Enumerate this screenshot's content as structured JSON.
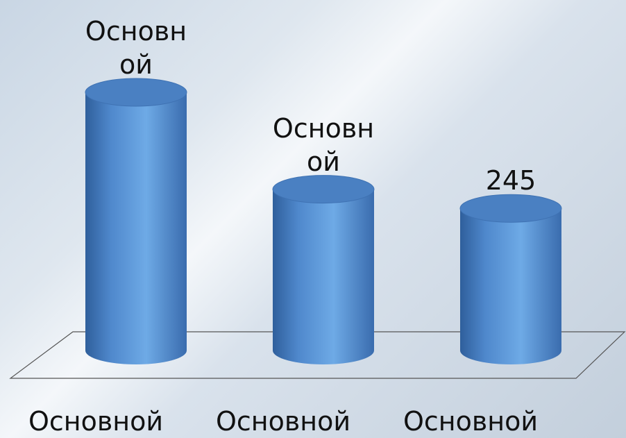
{
  "chart_data": {
    "type": "bar",
    "categories": [
      "Основной",
      "Основной",
      "Основной"
    ],
    "values": [
      445,
      278,
      245
    ],
    "value_labels": [
      "Основной",
      "Основной",
      "245"
    ],
    "color": "#5b9bd5"
  }
}
